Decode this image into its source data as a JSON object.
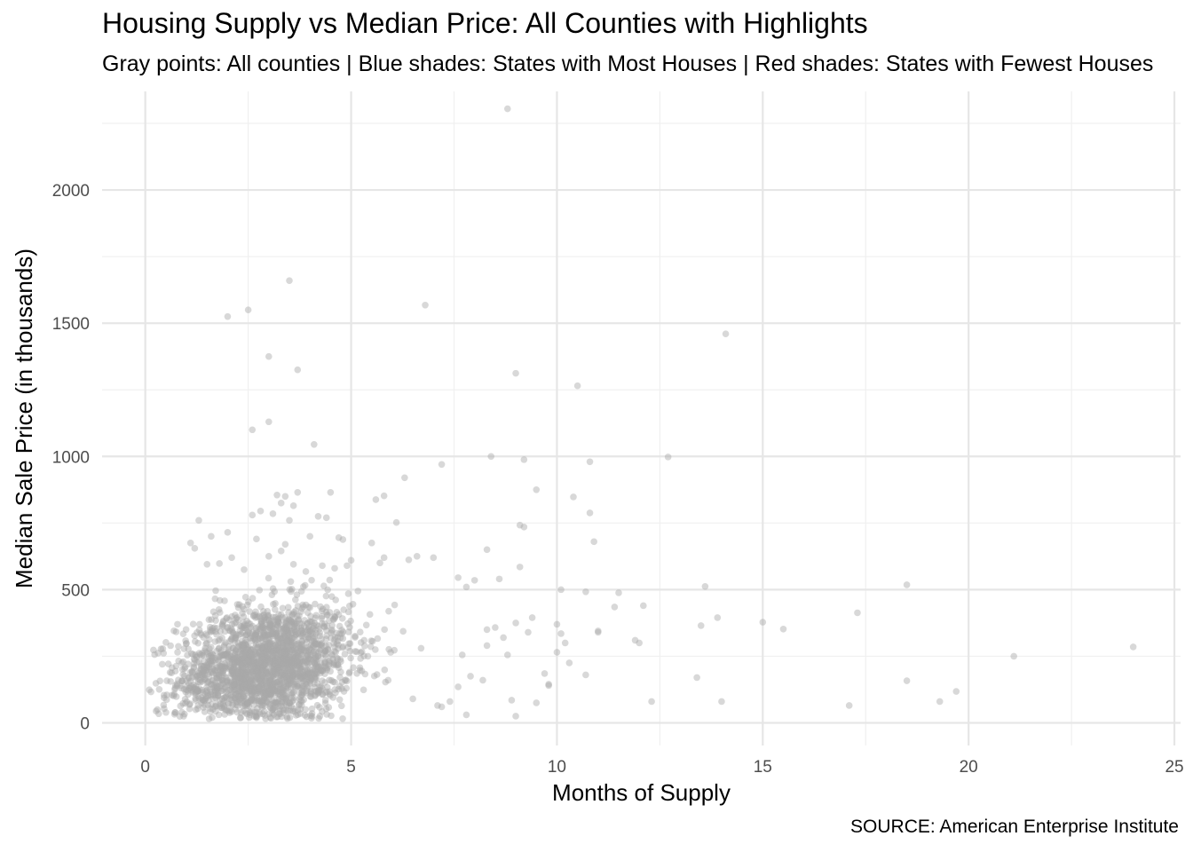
{
  "chart_data": {
    "type": "scatter",
    "title": "Housing Supply vs Median Price: All Counties with Highlights",
    "subtitle": "Gray points: All counties | Blue shades: States with Most Houses | Red shades: States with Fewest Houses",
    "xlabel": "Months of Supply",
    "ylabel": "Median Sale Price (in thousands)",
    "caption": "SOURCE: American Enterprise Institute",
    "xlim": [
      -1.05,
      25.15
    ],
    "ylim": [
      -85,
      2370
    ],
    "x_ticks": [
      0,
      5,
      10,
      15,
      20,
      25
    ],
    "y_ticks": [
      0,
      500,
      1000,
      1500,
      2000
    ],
    "x_tick_labels": [
      "0",
      "5",
      "10",
      "15",
      "20",
      "25"
    ],
    "y_tick_labels": [
      "0",
      "500",
      "1000",
      "1500",
      "2000"
    ],
    "grid": true,
    "point_color": "#a9a9a9",
    "series": [
      {
        "points": [
          [
            8.8,
            2305
          ],
          [
            3.5,
            1660
          ],
          [
            2.5,
            1550
          ],
          [
            2.0,
            1525
          ],
          [
            6.8,
            1568
          ],
          [
            14.1,
            1460
          ],
          [
            3.0,
            1375
          ],
          [
            3.7,
            1325
          ],
          [
            9.0,
            1312
          ],
          [
            10.5,
            1265
          ],
          [
            3.0,
            1130
          ],
          [
            2.6,
            1100
          ],
          [
            4.1,
            1045
          ],
          [
            8.4,
            1000
          ],
          [
            12.7,
            998
          ],
          [
            9.2,
            988
          ],
          [
            10.8,
            980
          ],
          [
            7.2,
            970
          ],
          [
            6.3,
            920
          ],
          [
            9.5,
            875
          ],
          [
            4.5,
            865
          ],
          [
            3.7,
            865
          ],
          [
            3.2,
            855
          ],
          [
            3.4,
            850
          ],
          [
            5.8,
            852
          ],
          [
            5.6,
            838
          ],
          [
            10.4,
            848
          ],
          [
            3.3,
            825
          ],
          [
            3.6,
            815
          ],
          [
            2.8,
            795
          ],
          [
            10.8,
            788
          ],
          [
            3.1,
            785
          ],
          [
            2.6,
            780
          ],
          [
            1.3,
            760
          ],
          [
            3.5,
            760
          ],
          [
            4.2,
            775
          ],
          [
            4.4,
            770
          ],
          [
            9.1,
            742
          ],
          [
            9.2,
            735
          ],
          [
            6.1,
            752
          ],
          [
            2.0,
            715
          ],
          [
            1.6,
            700
          ],
          [
            4.0,
            700
          ],
          [
            10.9,
            680
          ],
          [
            1.1,
            675
          ],
          [
            2.7,
            690
          ],
          [
            4.7,
            695
          ],
          [
            4.8,
            688
          ],
          [
            5.5,
            675
          ],
          [
            3.4,
            670
          ],
          [
            3.3,
            645
          ],
          [
            8.3,
            650
          ],
          [
            1.2,
            655
          ],
          [
            2.1,
            620
          ],
          [
            3.0,
            625
          ],
          [
            5.8,
            620
          ],
          [
            5.7,
            600
          ],
          [
            6.6,
            625
          ],
          [
            7.0,
            620
          ],
          [
            1.8,
            598
          ],
          [
            1.5,
            595
          ],
          [
            3.6,
            595
          ],
          [
            4.3,
            590
          ],
          [
            9.1,
            585
          ],
          [
            5.0,
            610
          ],
          [
            4.9,
            590
          ],
          [
            6.4,
            612
          ],
          [
            2.4,
            575
          ],
          [
            3.9,
            568
          ],
          [
            4.6,
            580
          ],
          [
            7.6,
            545
          ],
          [
            8.6,
            540
          ],
          [
            8.0,
            535
          ],
          [
            7.8,
            510
          ],
          [
            10.1,
            500
          ],
          [
            11.5,
            488
          ],
          [
            10.7,
            492
          ],
          [
            13.6,
            512
          ],
          [
            18.5,
            518
          ],
          [
            17.3,
            413
          ],
          [
            15.0,
            378
          ],
          [
            15.5,
            352
          ],
          [
            13.9,
            395
          ],
          [
            13.5,
            365
          ],
          [
            12.1,
            440
          ],
          [
            11.4,
            435
          ],
          [
            11.0,
            340
          ],
          [
            11.0,
            345
          ],
          [
            12.0,
            300
          ],
          [
            11.9,
            310
          ],
          [
            10.0,
            370
          ],
          [
            9.4,
            395
          ],
          [
            9.0,
            375
          ],
          [
            8.3,
            350
          ],
          [
            8.5,
            358
          ],
          [
            8.7,
            320
          ],
          [
            9.3,
            340
          ],
          [
            10.1,
            335
          ],
          [
            10.2,
            300
          ],
          [
            10.0,
            265
          ],
          [
            10.3,
            225
          ],
          [
            8.3,
            290
          ],
          [
            9.7,
            185
          ],
          [
            9.8,
            145
          ],
          [
            9.8,
            140
          ],
          [
            10.7,
            180
          ],
          [
            8.8,
            255
          ],
          [
            13.4,
            170
          ],
          [
            14.0,
            80
          ],
          [
            12.3,
            80
          ],
          [
            17.1,
            65
          ],
          [
            18.5,
            158
          ],
          [
            19.3,
            80
          ],
          [
            19.7,
            118
          ],
          [
            21.1,
            250
          ],
          [
            24.0,
            285
          ],
          [
            8.9,
            85
          ],
          [
            9.0,
            25
          ],
          [
            9.5,
            75
          ],
          [
            7.8,
            30
          ],
          [
            7.4,
            80
          ],
          [
            7.1,
            65
          ],
          [
            7.6,
            135
          ],
          [
            7.9,
            175
          ],
          [
            7.7,
            255
          ],
          [
            7.2,
            60
          ],
          [
            8.2,
            160
          ],
          [
            6.7,
            280
          ],
          [
            5.9,
            160
          ],
          [
            6.5,
            90
          ]
        ]
      }
    ],
    "cluster": {
      "x_mean": 2.9,
      "x_sd": 1.05,
      "y_mean": 210,
      "y_sd": 115,
      "count": 2300
    }
  }
}
